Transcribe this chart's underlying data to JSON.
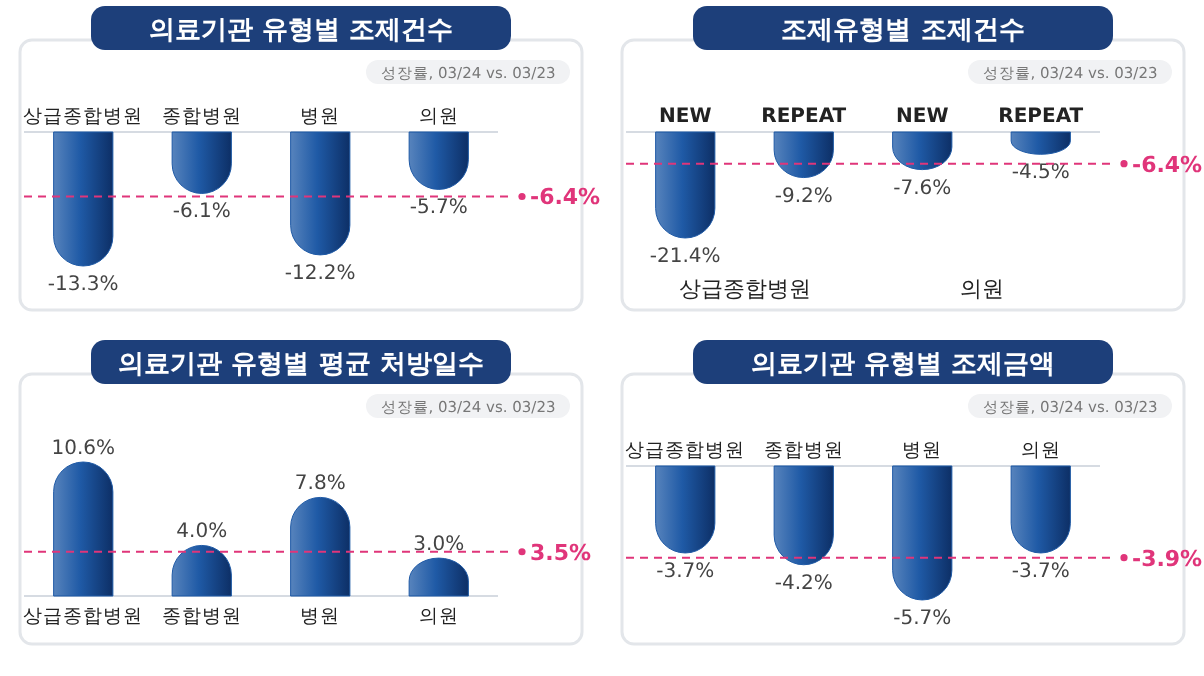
{
  "chart_data": [
    {
      "type": "bar",
      "title": "의료기관 유형별 조제건수",
      "subtitle": "성장률, 03/24 vs. 03/23",
      "categories": [
        "상급종합병원",
        "종합병원",
        "병원",
        "의원"
      ],
      "values": [
        -13.3,
        -6.1,
        -12.2,
        -5.7
      ],
      "value_labels": [
        "-13.3%",
        "-6.1%",
        "-12.2%",
        "-5.7%"
      ],
      "color": "#1f5aa6",
      "ref_lines": [
        {
          "axis": "y",
          "value": -6.4,
          "label": "-6.4%",
          "color": "#e0357a",
          "line_style": "dashed"
        }
      ]
    },
    {
      "type": "bar",
      "title": "조제유형별 조제건수",
      "subtitle": "성장률, 03/24 vs. 03/23",
      "categories": [
        "NEW",
        "REPEAT",
        "NEW",
        "REPEAT"
      ],
      "values": [
        -21.4,
        -9.2,
        -7.6,
        -4.5
      ],
      "value_labels": [
        "-21.4%",
        "-9.2%",
        "-7.6%",
        "-4.5%"
      ],
      "color": "#1f5aa6",
      "ref_lines": [
        {
          "axis": "y",
          "value": -6.4,
          "label": "-6.4%",
          "color": "#e0357a",
          "line_style": "dashed"
        }
      ],
      "annotations": [
        "상급종합병원",
        "의원"
      ]
    },
    {
      "type": "bar",
      "title": "의료기관 유형별 평균 처방일수",
      "subtitle": "성장률, 03/24 vs. 03/23",
      "categories": [
        "상급종합병원",
        "종합병원",
        "병원",
        "의원"
      ],
      "values": [
        10.6,
        4.0,
        7.8,
        3.0
      ],
      "value_labels": [
        "10.6%",
        "4.0%",
        "7.8%",
        "3.0%"
      ],
      "color": "#1f5aa6",
      "ref_lines": [
        {
          "axis": "y",
          "value": 3.5,
          "label": "3.5%",
          "color": "#e0357a",
          "line_style": "dashed"
        }
      ]
    },
    {
      "type": "bar",
      "title": "의료기관 유형별 조제금액",
      "subtitle": "성장률, 03/24 vs. 03/23",
      "categories": [
        "상급종합병원",
        "종합병원",
        "병원",
        "의원"
      ],
      "values": [
        -3.7,
        -4.2,
        -5.7,
        -3.7
      ],
      "value_labels": [
        "-3.7%",
        "-4.2%",
        "-5.7%",
        "-3.7%"
      ],
      "color": "#1f5aa6",
      "ref_lines": [
        {
          "axis": "y",
          "value": -3.9,
          "label": "-3.9%",
          "color": "#e0357a",
          "line_style": "dashed"
        }
      ]
    }
  ]
}
